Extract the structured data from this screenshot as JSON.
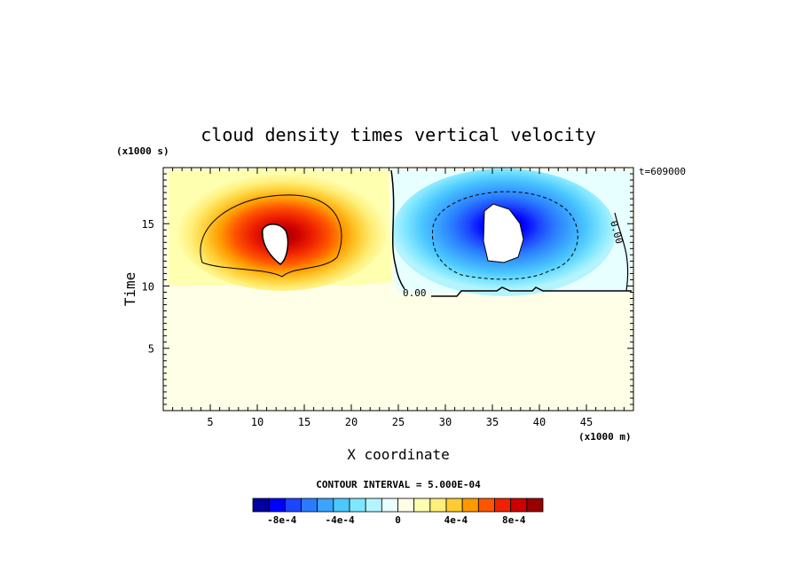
{
  "chart_data": {
    "type": "heatmap",
    "title": "cloud density times vertical velocity",
    "xlabel": "X coordinate",
    "ylabel": "Time",
    "x_units": "(x1000 m)",
    "y_units": "(x1000 s)",
    "corner_label": "t=609000",
    "xlim": [
      0,
      50
    ],
    "ylim": [
      0,
      19.5
    ],
    "xticks": [
      5,
      10,
      15,
      20,
      25,
      30,
      35,
      40,
      45
    ],
    "yticks": [
      5,
      10,
      15
    ],
    "background_value": 0,
    "contour_interval_text": "CONTOUR INTERVAL = 5.000E-04",
    "contour_labels": [
      "0.00",
      "0.00"
    ],
    "features": [
      {
        "kind": "positive_cell",
        "x_range": [
          0,
          24.5
        ],
        "y_range": [
          10.5,
          19.5
        ],
        "peak_x": 12,
        "peak_y": 14,
        "peak_value": 0.00095
      },
      {
        "kind": "negative_cell",
        "x_range": [
          24.5,
          50
        ],
        "y_range": [
          9.5,
          19.5
        ],
        "peak_x": 35,
        "peak_y": 15,
        "peak_value": -0.00095
      }
    ],
    "colorbar": {
      "labels": [
        "-8e-4",
        "-4e-4",
        "0",
        "4e-4",
        "8e-4"
      ],
      "label_values": [
        -0.0008,
        -0.0004,
        0,
        0.0004,
        0.0008
      ],
      "range": [
        -0.001,
        0.001
      ],
      "colors": [
        "#0000a0",
        "#0000ff",
        "#1c45ff",
        "#2a7cff",
        "#3aa4ff",
        "#4cc8ff",
        "#7fe6ff",
        "#b4f4ff",
        "#e8ffff",
        "#ffffe8",
        "#ffffb0",
        "#ffef7a",
        "#ffcc33",
        "#ff9900",
        "#ff5500",
        "#ee2200",
        "#cc0000",
        "#990000"
      ]
    }
  }
}
